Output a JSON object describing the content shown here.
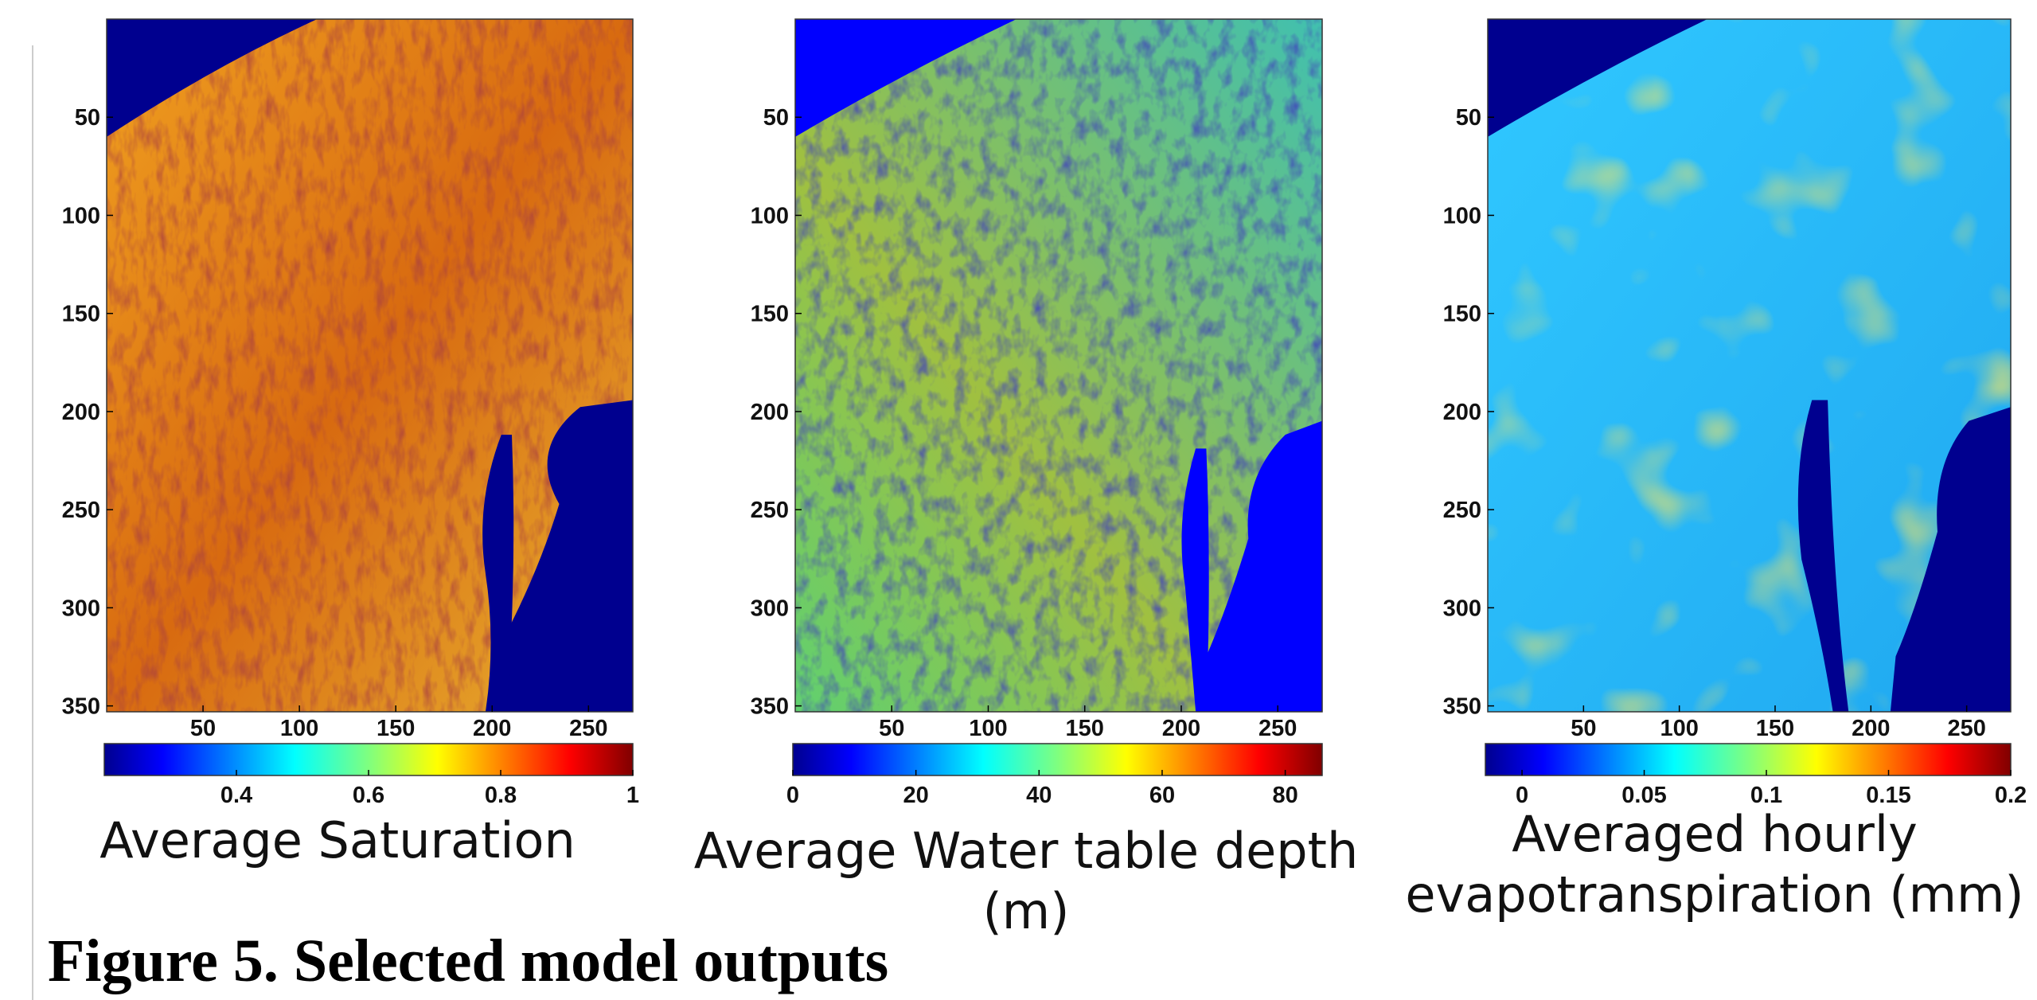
{
  "caption": "Figure 5. Selected model outputs",
  "chart_data": [
    {
      "type": "heatmap",
      "title": [
        "Average Saturation"
      ],
      "colormap": "jet",
      "xlim": [
        0,
        273
      ],
      "ylim": [
        353,
        0
      ],
      "xticks": [
        50,
        100,
        150,
        200,
        250
      ],
      "yticks": [
        50,
        100,
        150,
        200,
        250,
        300,
        350
      ],
      "clim": [
        0.2,
        1
      ],
      "cticks": [
        0.4,
        0.6,
        0.8,
        1
      ]
    },
    {
      "type": "heatmap",
      "title": [
        "Average Water table depth",
        "(m)"
      ],
      "colormap": "jet",
      "xlim": [
        0,
        273
      ],
      "ylim": [
        353,
        0
      ],
      "xticks": [
        50,
        100,
        150,
        200,
        250
      ],
      "yticks": [
        50,
        100,
        150,
        200,
        250,
        300,
        350
      ],
      "clim": [
        0,
        86
      ],
      "cticks": [
        0,
        20,
        40,
        60,
        80
      ]
    },
    {
      "type": "heatmap",
      "title": [
        "Averaged hourly",
        "evapotranspiration (mm)"
      ],
      "colormap": "jet",
      "xlim": [
        0,
        273
      ],
      "ylim": [
        353,
        0
      ],
      "xticks": [
        50,
        100,
        150,
        200,
        250
      ],
      "yticks": [
        50,
        100,
        150,
        200,
        250,
        300,
        350
      ],
      "clim": [
        -0.015,
        0.2
      ],
      "cticks": [
        0,
        0.05,
        0.1,
        0.15,
        0.2
      ]
    }
  ]
}
